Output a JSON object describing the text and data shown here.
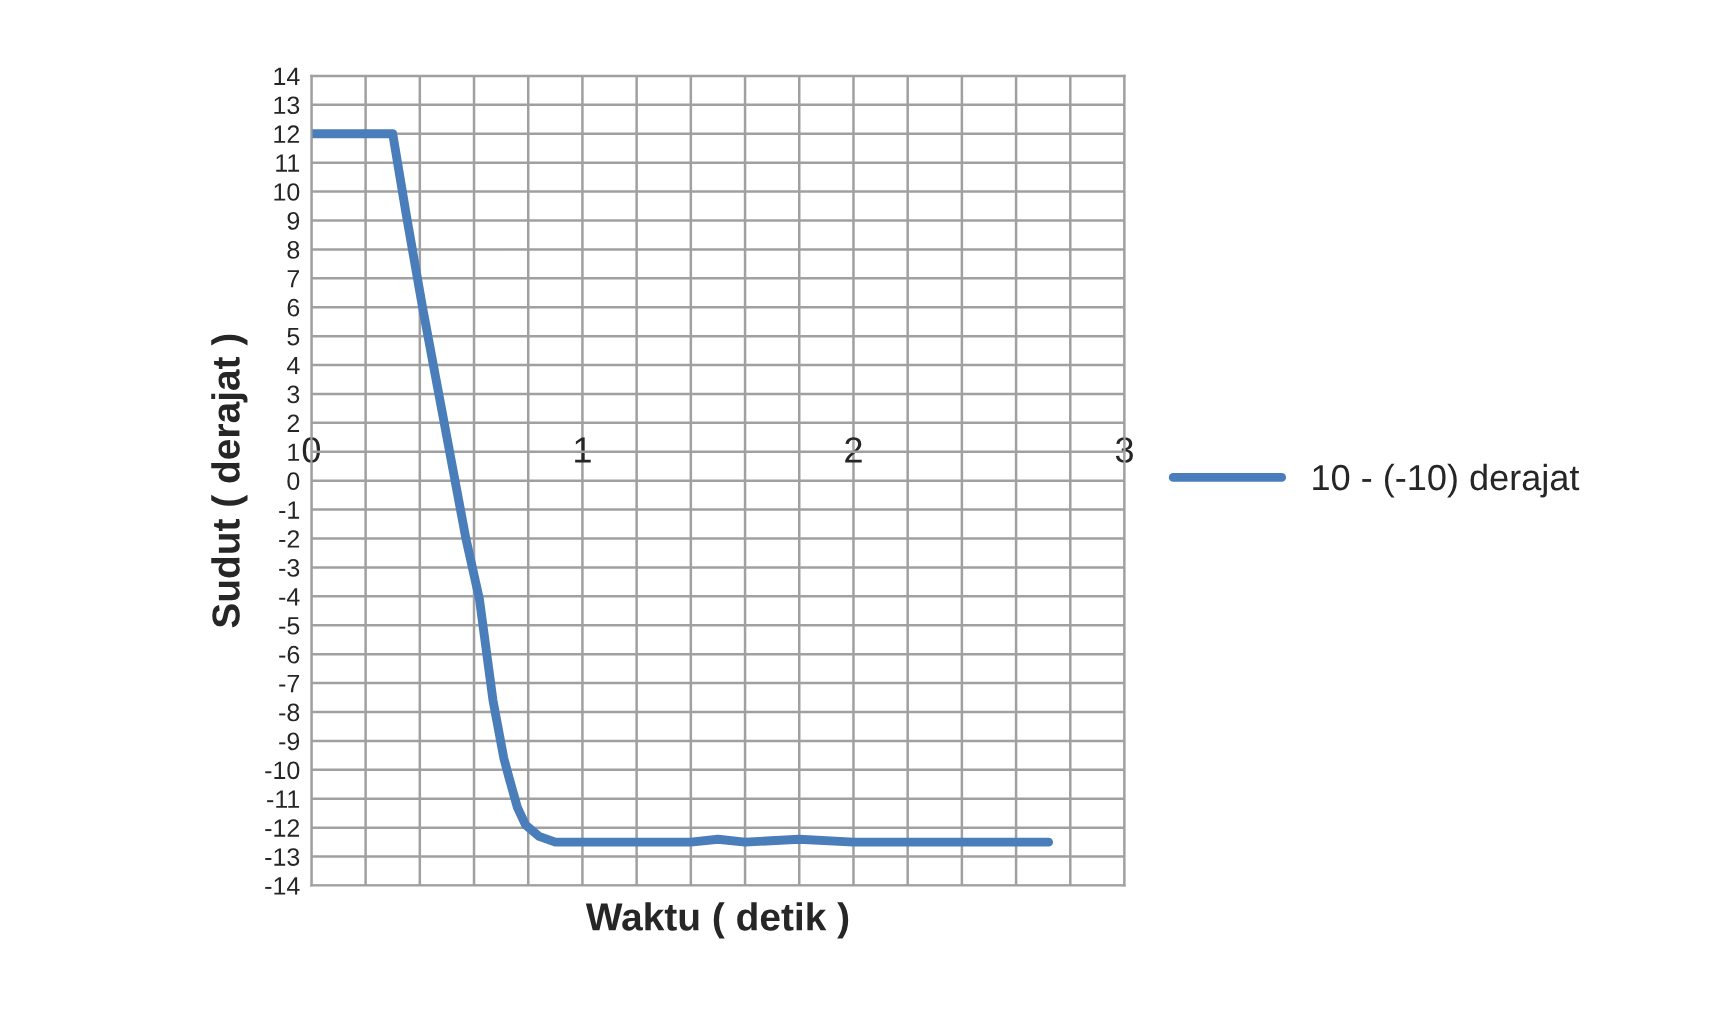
{
  "chart_data": {
    "type": "line",
    "xlabel": "Waktu ( detik )",
    "ylabel": "Sudut ( derajat )",
    "series": [
      {
        "name": "10 - (-10) derajat",
        "color": "#4a7ebb",
        "x": [
          0,
          0.1,
          0.2,
          0.3,
          0.35,
          0.41,
          0.47,
          0.52,
          0.57,
          0.62,
          0.67,
          0.71,
          0.73,
          0.76,
          0.79,
          0.84,
          0.9,
          1.0,
          1.2,
          1.4,
          1.5,
          1.6,
          1.8,
          2.0,
          2.2,
          2.4,
          2.6,
          2.72
        ],
        "values": [
          12,
          12,
          12,
          12,
          9.2,
          6,
          3,
          0.5,
          -2,
          -4.1,
          -7.6,
          -9.6,
          -10.3,
          -11.3,
          -11.9,
          -12.3,
          -12.5,
          -12.5,
          -12.5,
          -12.5,
          -12.4,
          -12.5,
          -12.4,
          -12.5,
          -12.5,
          -12.5,
          -12.5,
          -12.5
        ]
      }
    ],
    "xlim": [
      0,
      3
    ],
    "xticks": [
      0,
      {
        "value": 0.2,
        "label": null
      },
      {
        "value": 0.4,
        "label": null
      },
      {
        "value": 0.6,
        "label": null
      },
      {
        "value": 0.8,
        "label": null
      },
      1,
      {
        "value": 1.2,
        "label": null
      },
      {
        "value": 1.4,
        "label": null
      },
      {
        "value": 1.6,
        "label": null
      },
      {
        "value": 1.8,
        "label": null
      },
      2,
      {
        "value": 2.2,
        "label": null
      },
      {
        "value": 2.4,
        "label": null
      },
      {
        "value": 2.6,
        "label": null
      },
      {
        "value": 2.8,
        "label": null
      },
      3
    ],
    "ylim": [
      -14,
      14
    ],
    "yticks": [
      -14,
      -13,
      -12,
      -11,
      -10,
      -9,
      -8,
      -7,
      -6,
      -5,
      -4,
      -3,
      -2,
      -1,
      0,
      1,
      2,
      3,
      4,
      5,
      6,
      7,
      8,
      9,
      10,
      11,
      12,
      13,
      14
    ],
    "grid": true,
    "legend": "right",
    "marker": "none",
    "line_style": "solid"
  }
}
